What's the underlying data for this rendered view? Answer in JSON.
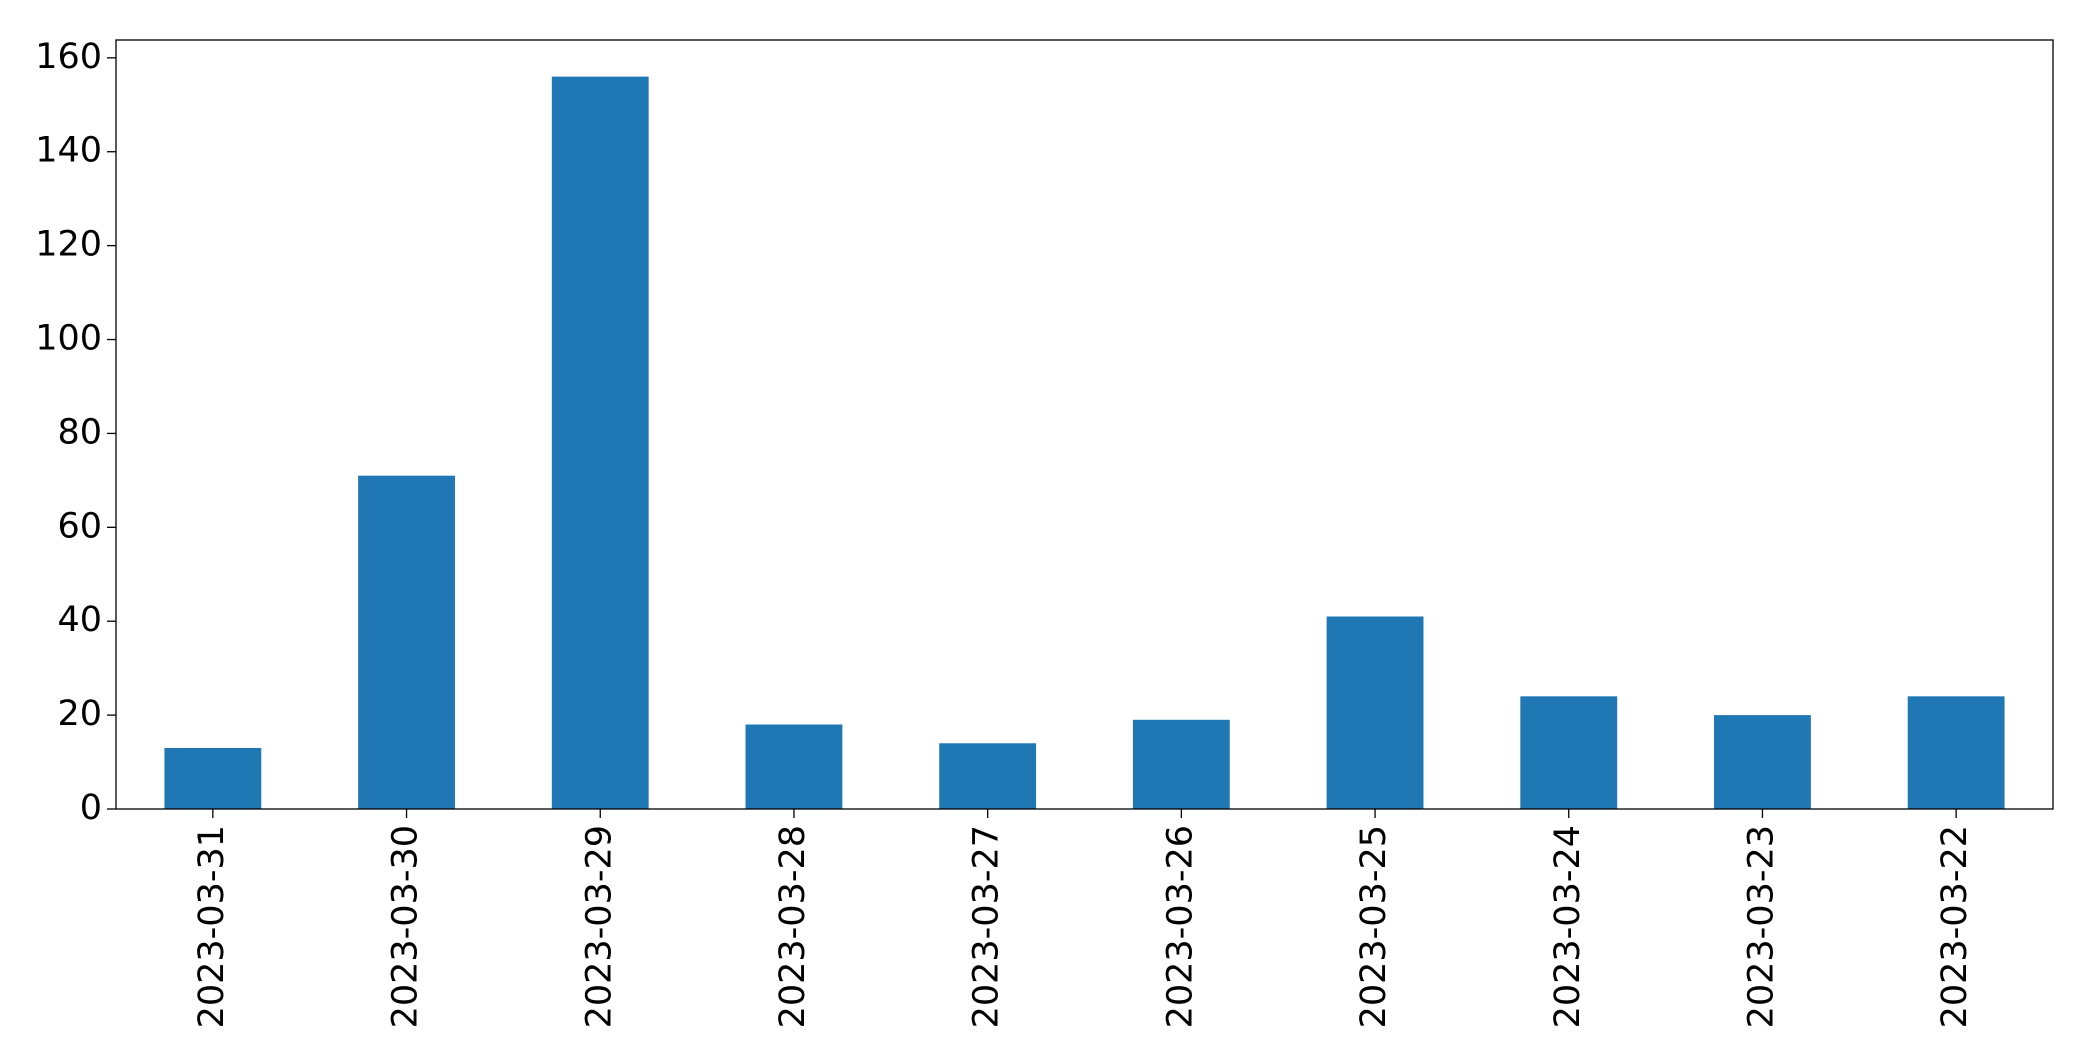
{
  "chart_data": {
    "type": "bar",
    "categories": [
      "2023-03-31",
      "2023-03-30",
      "2023-03-29",
      "2023-03-28",
      "2023-03-27",
      "2023-03-26",
      "2023-03-25",
      "2023-03-24",
      "2023-03-23",
      "2023-03-22"
    ],
    "values": [
      13,
      71,
      156,
      18,
      14,
      19,
      41,
      24,
      20,
      24
    ],
    "color": "#1f77b4",
    "ylim": [
      0,
      163.8
    ],
    "yticks": [
      0,
      20,
      40,
      60,
      80,
      100,
      120,
      140,
      160
    ],
    "grid": false
  }
}
